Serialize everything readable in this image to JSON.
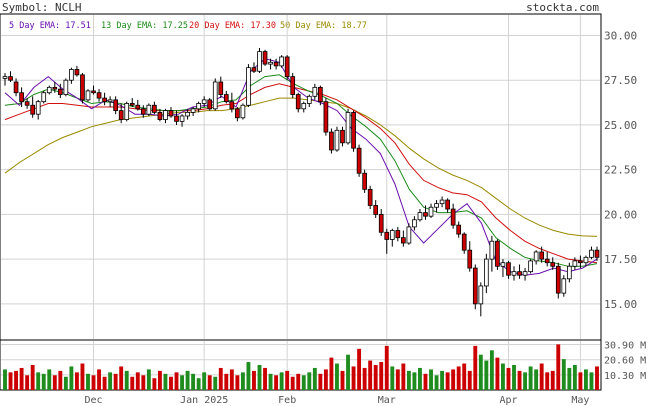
{
  "header": {
    "symbol": "Symbol: NCLH",
    "site": "stockta.com"
  },
  "legend": [
    {
      "label": "5 Day EMA: 17.51",
      "color": "#6a0dad"
    },
    {
      "label": "13 Day EMA: 17.25",
      "color": "#1a8a1a"
    },
    {
      "label": "20 Day EMA: 17.30",
      "color": "#d01010"
    },
    {
      "label": "50 Day EMA: 18.77",
      "color": "#9a8a00"
    }
  ],
  "chart_data": {
    "type": "candlestick",
    "price_axis": {
      "ticks": [
        "30.00",
        "27.50",
        "25.00",
        "22.50",
        "20.00",
        "17.50",
        "15.00"
      ],
      "ylim": [
        12.98,
        31.2
      ]
    },
    "volume_axis": {
      "ticks": [
        "30.90 M",
        "20.60 M",
        "10.30 M"
      ],
      "ylim": [
        0,
        34
      ]
    },
    "x_labels": [
      "Dec",
      "Jan 2025",
      "Feb",
      "Mar",
      "Apr",
      "May"
    ],
    "colors": {
      "up": "#ffffff",
      "down": "#cc0000",
      "vol_up": "#1f8c1f",
      "vol_down": "#cc0000",
      "grid": "#d3d3d3"
    },
    "candles": [
      [
        27.6,
        27.9,
        27.2,
        27.7
      ],
      [
        27.7,
        28.0,
        27.4,
        27.5
      ],
      [
        27.4,
        27.6,
        26.6,
        26.8
      ],
      [
        26.8,
        27.1,
        26.0,
        26.3
      ],
      [
        26.3,
        26.5,
        25.9,
        26.1
      ],
      [
        26.1,
        26.6,
        25.4,
        25.6
      ],
      [
        25.6,
        26.4,
        25.3,
        26.3
      ],
      [
        26.3,
        26.9,
        26.2,
        26.8
      ],
      [
        26.8,
        27.2,
        26.7,
        27.1
      ],
      [
        27.1,
        27.4,
        26.8,
        27.0
      ],
      [
        27.0,
        27.3,
        26.5,
        26.7
      ],
      [
        26.7,
        27.6,
        26.6,
        27.5
      ],
      [
        27.5,
        28.2,
        27.3,
        28.1
      ],
      [
        28.1,
        28.3,
        27.7,
        27.8
      ],
      [
        27.8,
        27.9,
        26.2,
        26.4
      ],
      [
        26.4,
        27.0,
        26.3,
        26.9
      ],
      [
        26.9,
        27.2,
        26.7,
        26.8
      ],
      [
        26.8,
        27.0,
        26.3,
        26.5
      ],
      [
        26.5,
        26.8,
        26.1,
        26.3
      ],
      [
        26.3,
        26.6,
        26.0,
        26.4
      ],
      [
        26.4,
        26.6,
        25.6,
        25.8
      ],
      [
        25.8,
        26.2,
        25.1,
        25.3
      ],
      [
        25.3,
        26.3,
        25.2,
        26.2
      ],
      [
        26.2,
        26.5,
        26.0,
        26.1
      ],
      [
        26.1,
        26.4,
        25.8,
        25.9
      ],
      [
        25.9,
        26.1,
        25.4,
        25.6
      ],
      [
        25.6,
        26.2,
        25.5,
        26.1
      ],
      [
        26.1,
        26.3,
        25.6,
        25.7
      ],
      [
        25.7,
        25.9,
        25.2,
        25.3
      ],
      [
        25.3,
        25.9,
        25.1,
        25.8
      ],
      [
        25.8,
        26.0,
        25.4,
        25.5
      ],
      [
        25.5,
        25.8,
        25.0,
        25.2
      ],
      [
        25.2,
        25.6,
        24.9,
        25.5
      ],
      [
        25.5,
        25.9,
        25.3,
        25.7
      ],
      [
        25.7,
        26.0,
        25.5,
        25.9
      ],
      [
        25.9,
        26.3,
        25.7,
        26.2
      ],
      [
        26.2,
        26.6,
        26.0,
        26.4
      ],
      [
        26.4,
        26.5,
        25.8,
        25.9
      ],
      [
        25.9,
        27.6,
        25.8,
        27.4
      ],
      [
        27.4,
        27.7,
        26.5,
        26.7
      ],
      [
        26.7,
        26.9,
        26.2,
        26.3
      ],
      [
        26.3,
        26.8,
        25.7,
        25.9
      ],
      [
        25.9,
        26.0,
        25.2,
        25.4
      ],
      [
        25.4,
        26.2,
        25.3,
        26.1
      ],
      [
        26.1,
        28.4,
        26.0,
        28.2
      ],
      [
        28.2,
        28.5,
        27.9,
        28.0
      ],
      [
        28.0,
        29.3,
        27.9,
        29.1
      ],
      [
        29.1,
        29.2,
        28.3,
        28.4
      ],
      [
        28.4,
        28.7,
        28.1,
        28.5
      ],
      [
        28.5,
        28.7,
        28.1,
        28.3
      ],
      [
        28.3,
        28.9,
        28.2,
        28.8
      ],
      [
        28.8,
        28.9,
        27.5,
        27.7
      ],
      [
        27.7,
        27.9,
        26.5,
        26.7
      ],
      [
        26.7,
        26.8,
        25.7,
        25.9
      ],
      [
        25.9,
        26.3,
        25.7,
        26.2
      ],
      [
        26.2,
        26.7,
        26.0,
        26.6
      ],
      [
        26.6,
        27.3,
        26.4,
        27.1
      ],
      [
        27.1,
        27.2,
        26.1,
        26.3
      ],
      [
        26.3,
        26.5,
        24.4,
        24.6
      ],
      [
        24.6,
        24.8,
        23.4,
        23.6
      ],
      [
        23.6,
        24.9,
        23.5,
        24.7
      ],
      [
        24.7,
        24.9,
        23.8,
        24.0
      ],
      [
        24.0,
        25.9,
        23.9,
        25.7
      ],
      [
        25.7,
        25.8,
        23.5,
        23.7
      ],
      [
        23.7,
        23.9,
        22.1,
        22.3
      ],
      [
        22.3,
        22.5,
        21.2,
        21.4
      ],
      [
        21.4,
        21.6,
        20.3,
        20.5
      ],
      [
        20.5,
        20.8,
        19.8,
        20.0
      ],
      [
        20.0,
        20.3,
        18.8,
        19.0
      ],
      [
        19.0,
        19.2,
        17.8,
        18.6
      ],
      [
        18.6,
        19.2,
        18.2,
        19.1
      ],
      [
        19.1,
        19.3,
        18.5,
        18.7
      ],
      [
        18.7,
        19.1,
        18.2,
        18.4
      ],
      [
        18.4,
        19.5,
        18.3,
        19.3
      ],
      [
        19.3,
        19.9,
        19.1,
        19.7
      ],
      [
        19.7,
        20.3,
        19.6,
        20.1
      ],
      [
        20.1,
        20.5,
        19.7,
        19.9
      ],
      [
        19.9,
        20.6,
        19.8,
        20.4
      ],
      [
        20.4,
        20.8,
        20.1,
        20.6
      ],
      [
        20.6,
        21.0,
        20.4,
        20.8
      ],
      [
        20.8,
        20.9,
        20.1,
        20.3
      ],
      [
        20.3,
        20.6,
        19.2,
        19.4
      ],
      [
        19.4,
        19.6,
        18.7,
        18.9
      ],
      [
        18.9,
        19.0,
        17.8,
        18.0
      ],
      [
        18.0,
        18.5,
        16.8,
        17.0
      ],
      [
        17.0,
        17.2,
        14.7,
        15.0
      ],
      [
        15.0,
        16.2,
        14.3,
        16.0
      ],
      [
        16.0,
        17.8,
        15.6,
        17.5
      ],
      [
        17.5,
        18.8,
        16.8,
        18.5
      ],
      [
        18.5,
        18.6,
        16.9,
        17.1
      ],
      [
        17.1,
        17.5,
        16.5,
        17.3
      ],
      [
        17.3,
        17.4,
        16.4,
        16.6
      ],
      [
        16.6,
        17.1,
        16.3,
        16.8
      ],
      [
        16.8,
        17.2,
        16.4,
        16.6
      ],
      [
        16.6,
        17.0,
        16.3,
        16.8
      ],
      [
        16.8,
        17.5,
        16.7,
        17.4
      ],
      [
        17.4,
        18.0,
        17.2,
        17.9
      ],
      [
        17.9,
        18.2,
        17.3,
        17.5
      ],
      [
        17.5,
        17.9,
        17.1,
        17.3
      ],
      [
        17.3,
        17.6,
        16.9,
        17.1
      ],
      [
        17.1,
        17.3,
        15.3,
        15.6
      ],
      [
        15.6,
        16.6,
        15.4,
        16.4
      ],
      [
        16.4,
        17.3,
        16.2,
        17.1
      ],
      [
        17.1,
        17.6,
        16.9,
        17.4
      ],
      [
        17.4,
        17.7,
        17.0,
        17.3
      ],
      [
        17.3,
        17.7,
        17.1,
        17.6
      ],
      [
        17.6,
        18.2,
        17.5,
        18.0
      ],
      [
        18.0,
        18.2,
        17.4,
        17.6
      ]
    ],
    "volume": [
      14,
      12,
      13,
      15,
      10,
      17,
      12,
      11,
      14,
      10,
      13,
      9,
      16,
      12,
      18,
      11,
      10,
      14,
      9,
      12,
      11,
      16,
      13,
      9,
      12,
      10,
      14,
      8,
      13,
      11,
      9,
      12,
      10,
      13,
      11,
      8,
      12,
      10,
      9,
      15,
      11,
      14,
      10,
      12,
      19,
      13,
      17,
      15,
      11,
      10,
      12,
      13,
      9,
      11,
      10,
      12,
      15,
      11,
      14,
      22,
      18,
      13,
      24,
      16,
      28,
      15,
      20,
      17,
      19,
      30,
      16,
      14,
      18,
      13,
      12,
      15,
      11,
      14,
      10,
      13,
      12,
      14,
      16,
      18,
      13,
      30,
      24,
      20,
      27,
      22,
      18,
      15,
      17,
      13,
      12,
      16,
      14,
      18,
      12,
      13,
      31,
      21,
      15,
      17,
      12,
      14,
      12,
      16
    ],
    "ema5": [
      26.8,
      26.1,
      27.1,
      27.7,
      27.0,
      26.5,
      25.9,
      26.4,
      26.1,
      25.6,
      25.6,
      25.5,
      25.6,
      26.0,
      26.1,
      26.6,
      26.0,
      28.0,
      28.7,
      28.5,
      27.1,
      26.5,
      26.2,
      25.8,
      24.8,
      24.2,
      23.4,
      21.7,
      19.3,
      18.4,
      19.2,
      20.0,
      20.6,
      19.5,
      17.4,
      16.8,
      16.6,
      16.7,
      17.0,
      16.8,
      17.0,
      17.5
    ],
    "ema13": [
      26.1,
      26.2,
      26.7,
      27.0,
      26.8,
      26.5,
      26.2,
      26.3,
      26.2,
      26.0,
      25.9,
      25.8,
      25.8,
      25.9,
      26.0,
      26.3,
      26.4,
      27.2,
      27.7,
      27.8,
      27.3,
      26.9,
      26.6,
      26.2,
      25.5,
      24.9,
      24.2,
      23.0,
      21.4,
      20.4,
      20.1,
      20.1,
      20.2,
      19.8,
      18.7,
      18.1,
      17.6,
      17.4,
      17.3,
      17.1,
      17.1,
      17.25
    ],
    "ema20": [
      25.3,
      25.6,
      25.9,
      26.2,
      26.2,
      26.1,
      26.0,
      26.0,
      26.0,
      25.9,
      25.8,
      25.8,
      25.8,
      25.8,
      25.9,
      26.1,
      26.2,
      26.7,
      27.1,
      27.3,
      27.1,
      26.9,
      26.7,
      26.4,
      25.9,
      25.4,
      24.8,
      24.0,
      22.8,
      21.9,
      21.5,
      21.2,
      21.1,
      20.7,
      19.8,
      19.1,
      18.5,
      18.1,
      17.8,
      17.5,
      17.4,
      17.3
    ],
    "ema50": [
      22.3,
      22.9,
      23.4,
      23.9,
      24.3,
      24.6,
      24.9,
      25.1,
      25.3,
      25.4,
      25.5,
      25.6,
      25.7,
      25.7,
      25.8,
      25.8,
      25.9,
      26.1,
      26.3,
      26.5,
      26.5,
      26.4,
      26.3,
      26.2,
      25.9,
      25.5,
      25.0,
      24.4,
      23.7,
      23.1,
      22.6,
      22.2,
      21.9,
      21.5,
      20.9,
      20.3,
      19.8,
      19.4,
      19.1,
      18.9,
      18.8,
      18.77
    ]
  }
}
